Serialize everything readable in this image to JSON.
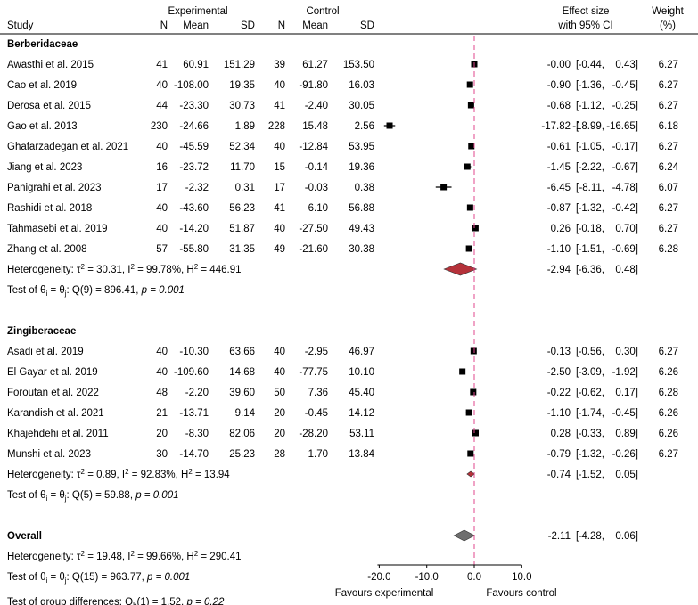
{
  "chart_data": {
    "type": "forest",
    "headers": {
      "study": "Study",
      "experimental": "Experimental",
      "control": "Control",
      "n": "N",
      "mean": "Mean",
      "sd": "SD",
      "effect_line1": "Effect size",
      "effect_line2": "with 95% CI",
      "weight_line1": "Weight",
      "weight_line2": "(%)"
    },
    "x_axis": {
      "ticks": [
        -20,
        -10,
        0,
        10
      ],
      "tick_labels": [
        "-20.0",
        "-10.0",
        "0.0",
        "10.0"
      ],
      "range": [
        -20,
        10
      ],
      "left_label": "Favours experimental",
      "right_label": "Favours control",
      "reference_line": 0
    },
    "groups": [
      {
        "name": "Berberidaceae",
        "studies": [
          {
            "study": "Awasthi et al. 2015",
            "n1": "41",
            "mean1": "60.91",
            "sd1": "151.29",
            "n2": "39",
            "mean2": "61.27",
            "sd2": "153.50",
            "es": -0.0,
            "lo": -0.44,
            "hi": 0.43,
            "es_text": "-0.00",
            "lo_text": "-0.44,",
            "hi_text": "0.43]",
            "weight": "6.27"
          },
          {
            "study": "Cao et al. 2019",
            "n1": "40",
            "mean1": "-108.00",
            "sd1": "19.35",
            "n2": "40",
            "mean2": "-91.80",
            "sd2": "16.03",
            "es": -0.9,
            "lo": -1.36,
            "hi": -0.45,
            "es_text": "-0.90",
            "lo_text": "-1.36,",
            "hi_text": "-0.45]",
            "weight": "6.27"
          },
          {
            "study": "Derosa et al. 2015",
            "n1": "44",
            "mean1": "-23.30",
            "sd1": "30.73",
            "n2": "41",
            "mean2": "-2.40",
            "sd2": "30.05",
            "es": -0.68,
            "lo": -1.12,
            "hi": -0.25,
            "es_text": "-0.68",
            "lo_text": "-1.12,",
            "hi_text": "-0.25]",
            "weight": "6.27"
          },
          {
            "study": "Gao et al. 2013",
            "n1": "230",
            "mean1": "-24.66",
            "sd1": "1.89",
            "n2": "228",
            "mean2": "15.48",
            "sd2": "2.56",
            "es": -17.82,
            "lo": -18.99,
            "hi": -16.65,
            "es_text": "-17.82",
            "lo_text": "-18.99,",
            "hi_text": "-16.65]",
            "weight": "6.18"
          },
          {
            "study": "Ghafarzadegan et al. 2021",
            "n1": "40",
            "mean1": "-45.59",
            "sd1": "52.34",
            "n2": "40",
            "mean2": "-12.84",
            "sd2": "53.95",
            "es": -0.61,
            "lo": -1.05,
            "hi": -0.17,
            "es_text": "-0.61",
            "lo_text": "-1.05,",
            "hi_text": "-0.17]",
            "weight": "6.27"
          },
          {
            "study": "Jiang et al. 2023",
            "n1": "16",
            "mean1": "-23.72",
            "sd1": "11.70",
            "n2": "15",
            "mean2": "-0.14",
            "sd2": "19.36",
            "es": -1.45,
            "lo": -2.22,
            "hi": -0.67,
            "es_text": "-1.45",
            "lo_text": "-2.22,",
            "hi_text": "-0.67]",
            "weight": "6.24"
          },
          {
            "study": "Panigrahi et al. 2023",
            "n1": "17",
            "mean1": "-2.32",
            "sd1": "0.31",
            "n2": "17",
            "mean2": "-0.03",
            "sd2": "0.38",
            "es": -6.45,
            "lo": -8.11,
            "hi": -4.78,
            "es_text": "-6.45",
            "lo_text": "-8.11,",
            "hi_text": "-4.78]",
            "weight": "6.07"
          },
          {
            "study": "Rashidi et al. 2018",
            "n1": "40",
            "mean1": "-43.60",
            "sd1": "56.23",
            "n2": "41",
            "mean2": "6.10",
            "sd2": "56.88",
            "es": -0.87,
            "lo": -1.32,
            "hi": -0.42,
            "es_text": "-0.87",
            "lo_text": "-1.32,",
            "hi_text": "-0.42]",
            "weight": "6.27"
          },
          {
            "study": "Tahmasebi et al. 2019",
            "n1": "40",
            "mean1": "-14.20",
            "sd1": "51.87",
            "n2": "40",
            "mean2": "-27.50",
            "sd2": "49.43",
            "es": 0.26,
            "lo": -0.18,
            "hi": 0.7,
            "es_text": "0.26",
            "lo_text": "-0.18,",
            "hi_text": "0.70]",
            "weight": "6.27"
          },
          {
            "study": "Zhang et al. 2008",
            "n1": "57",
            "mean1": "-55.80",
            "sd1": "31.35",
            "n2": "49",
            "mean2": "-21.60",
            "sd2": "30.38",
            "es": -1.1,
            "lo": -1.51,
            "hi": -0.69,
            "es_text": "-1.10",
            "lo_text": "-1.51,",
            "hi_text": "-0.69]",
            "weight": "6.28"
          }
        ],
        "summary": {
          "es": -2.94,
          "lo": -6.36,
          "hi": 0.48,
          "es_text": "-2.94",
          "lo_text": "-6.36,",
          "hi_text": "0.48]"
        },
        "heterogeneity": {
          "prefix": "Heterogeneity: τ",
          "tau2": " = 30.31, I",
          "i2": " = 99.78%, H",
          "h2": " = 446.91"
        },
        "test": {
          "prefix": "Test of θ",
          "eq": " = θ",
          "stat": ": Q(9) = 896.41, ",
          "p": "p = 0.001"
        }
      },
      {
        "name": "Zingiberaceae",
        "studies": [
          {
            "study": "Asadi et al. 2019",
            "n1": "40",
            "mean1": "-10.30",
            "sd1": "63.66",
            "n2": "40",
            "mean2": "-2.95",
            "sd2": "46.97",
            "es": -0.13,
            "lo": -0.56,
            "hi": 0.3,
            "es_text": "-0.13",
            "lo_text": "-0.56,",
            "hi_text": "0.30]",
            "weight": "6.27"
          },
          {
            "study": "El Gayar et al. 2019",
            "n1": "40",
            "mean1": "-109.60",
            "sd1": "14.68",
            "n2": "40",
            "mean2": "-77.75",
            "sd2": "10.10",
            "es": -2.5,
            "lo": -3.09,
            "hi": -1.92,
            "es_text": "-2.50",
            "lo_text": "-3.09,",
            "hi_text": "-1.92]",
            "weight": "6.26"
          },
          {
            "study": "Foroutan et al. 2022",
            "n1": "48",
            "mean1": "-2.20",
            "sd1": "39.60",
            "n2": "50",
            "mean2": "7.36",
            "sd2": "45.40",
            "es": -0.22,
            "lo": -0.62,
            "hi": 0.17,
            "es_text": "-0.22",
            "lo_text": "-0.62,",
            "hi_text": "0.17]",
            "weight": "6.28"
          },
          {
            "study": "Karandish et al. 2021",
            "n1": "21",
            "mean1": "-13.71",
            "sd1": "9.14",
            "n2": "20",
            "mean2": "-0.45",
            "sd2": "14.12",
            "es": -1.1,
            "lo": -1.74,
            "hi": -0.45,
            "es_text": "-1.10",
            "lo_text": "-1.74,",
            "hi_text": "-0.45]",
            "weight": "6.26"
          },
          {
            "study": "Khajehdehi et al. 2011",
            "n1": "20",
            "mean1": "-8.30",
            "sd1": "82.06",
            "n2": "20",
            "mean2": "-28.20",
            "sd2": "53.11",
            "es": 0.28,
            "lo": -0.33,
            "hi": 0.89,
            "es_text": "0.28",
            "lo_text": "-0.33,",
            "hi_text": "0.89]",
            "weight": "6.26"
          },
          {
            "study": "Munshi et al. 2023",
            "n1": "30",
            "mean1": "-14.70",
            "sd1": "25.23",
            "n2": "28",
            "mean2": "1.70",
            "sd2": "13.84",
            "es": -0.79,
            "lo": -1.32,
            "hi": -0.26,
            "es_text": "-0.79",
            "lo_text": "-1.32,",
            "hi_text": "-0.26]",
            "weight": "6.27"
          }
        ],
        "summary": {
          "es": -0.74,
          "lo": -1.52,
          "hi": 0.05,
          "es_text": "-0.74",
          "lo_text": "-1.52,",
          "hi_text": "0.05]"
        },
        "heterogeneity": {
          "prefix": "Heterogeneity: τ",
          "tau2": " = 0.89, I",
          "i2": " = 92.83%, H",
          "h2": " = 13.94"
        },
        "test": {
          "prefix": "Test of θ",
          "eq": " = θ",
          "stat": ": Q(5) = 59.88, ",
          "p": "p = 0.001"
        }
      }
    ],
    "overall": {
      "label": "Overall",
      "es": -2.11,
      "lo": -4.28,
      "hi": 0.06,
      "es_text": "-2.11",
      "lo_text": "-4.28,",
      "hi_text": "0.06]",
      "heterogeneity": {
        "prefix": "Heterogeneity: τ",
        "tau2": " = 19.48, I",
        "i2": " = 99.66%, H",
        "h2": " = 290.41"
      },
      "test": {
        "prefix": "Test of θ",
        "eq": " = θ",
        "stat": ": Q(15) = 963.77, ",
        "p": "p = 0.001"
      }
    },
    "group_diff": {
      "prefix": "Test of group differences: Q",
      "sub": "b",
      "stat": "(1) = 1.52, ",
      "p": "p = 0.22"
    },
    "superscript": "2",
    "subscript_i": "i",
    "subscript_j": "j",
    "ci_open": "[",
    "colors": {
      "subgroup_diamond": "#b5323a",
      "overall_diamond": "#6e6e6e",
      "marker": "#000000",
      "reference_line": "#e0478c"
    }
  }
}
